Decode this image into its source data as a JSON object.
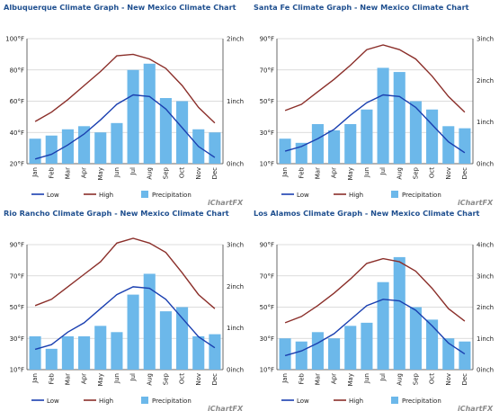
{
  "chart_data": [
    {
      "type": "bar",
      "title": "Albuquerque Climate Graph - New Mexico Climate Chart",
      "categories": [
        "Jan",
        "Feb",
        "Mar",
        "Apr",
        "May",
        "Jun",
        "Jul",
        "Aug",
        "Sep",
        "Oct",
        "Nov",
        "Dec"
      ],
      "left_axis": {
        "min": 20,
        "max": 100,
        "ticks": [
          "20°F",
          "40°F",
          "60°F",
          "80°F",
          "100°F"
        ]
      },
      "right_axis": {
        "min": 0,
        "max": 2,
        "ticks": [
          "0inch",
          "1inch",
          "2inch"
        ]
      },
      "series": [
        {
          "name": "Low",
          "kind": "line",
          "axis": "left",
          "color": "#1a3fb0",
          "values": [
            23,
            26,
            32,
            39,
            48,
            58,
            64,
            63,
            55,
            43,
            31,
            24
          ]
        },
        {
          "name": "High",
          "kind": "line",
          "axis": "left",
          "color": "#8b2f2a",
          "values": [
            47,
            53,
            61,
            70,
            79,
            89,
            90,
            87,
            81,
            70,
            56,
            46
          ]
        },
        {
          "name": "Precipitation",
          "kind": "bar",
          "axis": "right",
          "color": "#6cb8ea",
          "values": [
            0.4,
            0.45,
            0.55,
            0.6,
            0.5,
            0.65,
            1.5,
            1.6,
            1.05,
            1.0,
            0.55,
            0.5
          ]
        }
      ]
    },
    {
      "type": "bar",
      "title": "Santa Fe Climate Graph - New Mexico Climate Chart",
      "categories": [
        "Jan",
        "Feb",
        "Mar",
        "Apr",
        "May",
        "Jun",
        "Jul",
        "Aug",
        "Sep",
        "Oct",
        "Nov",
        "Dec"
      ],
      "left_axis": {
        "min": 10,
        "max": 90,
        "ticks": [
          "10°F",
          "30°F",
          "50°F",
          "70°F",
          "90°F"
        ]
      },
      "right_axis": {
        "min": 0,
        "max": 3,
        "ticks": [
          "0inch",
          "1inch",
          "2inch",
          "3inch"
        ]
      },
      "series": [
        {
          "name": "Low",
          "kind": "line",
          "axis": "left",
          "color": "#1a3fb0",
          "values": [
            18,
            21,
            26,
            32,
            41,
            49,
            54,
            53,
            46,
            35,
            24,
            17
          ]
        },
        {
          "name": "High",
          "kind": "line",
          "axis": "left",
          "color": "#8b2f2a",
          "values": [
            44,
            48,
            56,
            64,
            73,
            83,
            86,
            83,
            77,
            66,
            53,
            43
          ]
        },
        {
          "name": "Precipitation",
          "kind": "bar",
          "axis": "right",
          "color": "#6cb8ea",
          "values": [
            0.6,
            0.5,
            0.95,
            0.8,
            0.95,
            1.3,
            2.3,
            2.2,
            1.5,
            1.3,
            0.9,
            0.85
          ]
        }
      ]
    },
    {
      "type": "bar",
      "title": "Rio Rancho Climate Graph - New Mexico Climate Chart",
      "categories": [
        "Jan",
        "Feb",
        "Mar",
        "Apr",
        "May",
        "Jun",
        "Jul",
        "Aug",
        "Sep",
        "Oct",
        "Nov",
        "Dec"
      ],
      "left_axis": {
        "min": 10,
        "max": 90,
        "ticks": [
          "10°F",
          "30°F",
          "50°F",
          "70°F",
          "90°F"
        ]
      },
      "right_axis": {
        "min": 0,
        "max": 3,
        "ticks": [
          "0inch",
          "1inch",
          "2inch",
          "3inch"
        ]
      },
      "series": [
        {
          "name": "Low",
          "kind": "line",
          "axis": "left",
          "color": "#1a3fb0",
          "values": [
            23,
            26,
            34,
            40,
            49,
            58,
            63,
            62,
            55,
            43,
            31,
            24
          ]
        },
        {
          "name": "High",
          "kind": "line",
          "axis": "left",
          "color": "#8b2f2a",
          "values": [
            51,
            55,
            63,
            71,
            79,
            91,
            94,
            91,
            85,
            72,
            58,
            49
          ]
        },
        {
          "name": "Precipitation",
          "kind": "bar",
          "axis": "right",
          "color": "#6cb8ea",
          "values": [
            0.8,
            0.5,
            0.8,
            0.8,
            1.05,
            0.9,
            1.8,
            2.3,
            1.4,
            1.5,
            0.8,
            0.85
          ]
        }
      ]
    },
    {
      "type": "bar",
      "title": "Los Alamos Climate Graph - New Mexico Climate Chart",
      "categories": [
        "Jan",
        "Feb",
        "Mar",
        "Apr",
        "May",
        "Jun",
        "Jul",
        "Aug",
        "Sep",
        "Oct",
        "Nov",
        "Dec"
      ],
      "left_axis": {
        "min": 10,
        "max": 90,
        "ticks": [
          "10°F",
          "30°F",
          "50°F",
          "70°F",
          "90°F"
        ]
      },
      "right_axis": {
        "min": 0,
        "max": 4,
        "ticks": [
          "0inch",
          "1inch",
          "2inch",
          "3inch",
          "4inch"
        ]
      },
      "series": [
        {
          "name": "Low",
          "kind": "line",
          "axis": "left",
          "color": "#1a3fb0",
          "values": [
            19,
            22,
            27,
            33,
            42,
            51,
            55,
            54,
            48,
            38,
            27,
            20
          ]
        },
        {
          "name": "High",
          "kind": "line",
          "axis": "left",
          "color": "#8b2f2a",
          "values": [
            40,
            44,
            51,
            59,
            68,
            78,
            81,
            79,
            73,
            62,
            49,
            41
          ]
        },
        {
          "name": "Precipitation",
          "kind": "bar",
          "axis": "right",
          "color": "#6cb8ea",
          "values": [
            1.0,
            0.9,
            1.2,
            1.0,
            1.4,
            1.5,
            2.8,
            3.6,
            2.0,
            1.6,
            1.0,
            0.9
          ]
        }
      ]
    }
  ],
  "legend": {
    "low": "Low",
    "high": "High",
    "precip": "Precipitation"
  },
  "watermark": "jChartFX"
}
